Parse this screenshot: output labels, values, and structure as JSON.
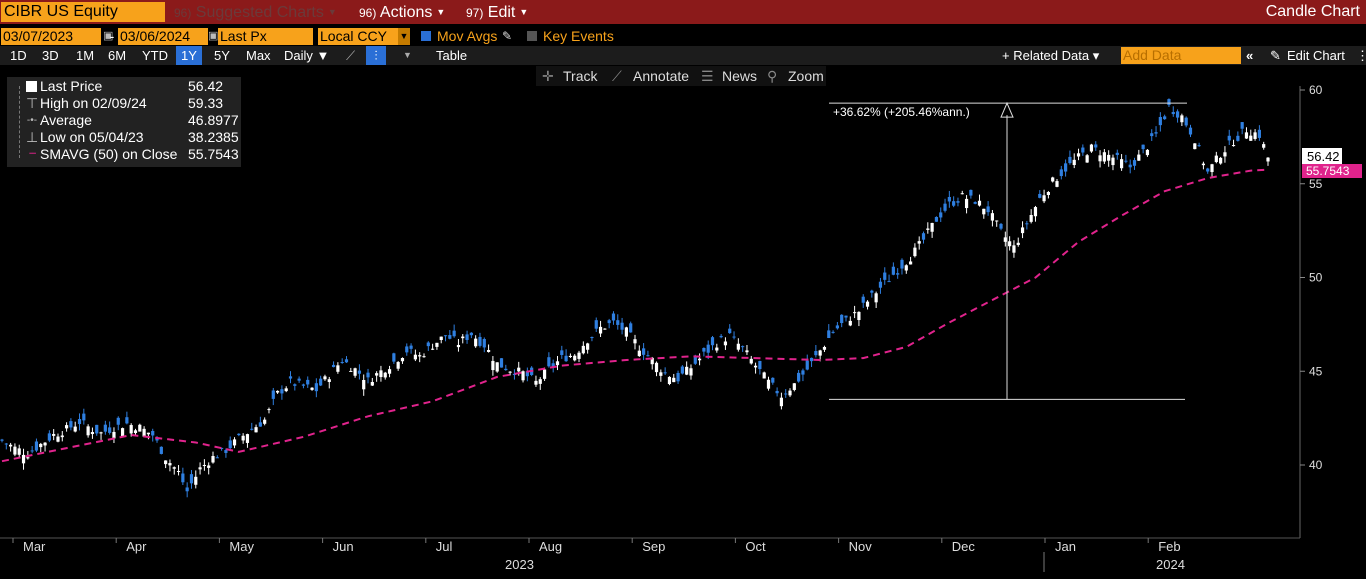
{
  "header": {
    "ticker": "CIBR US Equity",
    "menus": [
      {
        "num": "96)",
        "label": "Suggested Charts",
        "dim": true
      },
      {
        "num": "96)",
        "label": "Actions",
        "dim": false
      },
      {
        "num": "97)",
        "label": "Edit",
        "dim": false
      }
    ],
    "chart_type": "Candle Chart"
  },
  "controls": {
    "start_date": "03/07/2023",
    "end_date": "03/06/2024",
    "date_sep": "-",
    "price_field": "Last Px",
    "currency": "Local CCY",
    "mov_avgs_label": "Mov Avgs",
    "key_events_label": "Key Events",
    "ranges": [
      "1D",
      "3D",
      "1M",
      "6M",
      "YTD",
      "1Y",
      "5Y",
      "Max"
    ],
    "active_range": "1Y",
    "frequency": "Daily ▼",
    "table_label": "Table",
    "related_data": "+ Related Data ▾",
    "add_data_placeholder": "Add Data",
    "edit_chart": "Edit Chart"
  },
  "chart_toolbar": {
    "track": "Track",
    "annotate": "Annotate",
    "news": "News",
    "zoom": "Zoom"
  },
  "legend": [
    {
      "label": "Last Price",
      "value": "56.42"
    },
    {
      "label": "High on 02/09/24",
      "value": "59.33"
    },
    {
      "label": "Average",
      "value": "46.8977"
    },
    {
      "label": "Low on 05/04/23",
      "value": "38.2385"
    },
    {
      "label": "SMAVG (50)  on Close",
      "value": "55.7543"
    }
  ],
  "colors": {
    "up": "#ffffff",
    "down": "#2f7fe0",
    "sma": "#e0238c",
    "accent": "#f7a21b"
  },
  "chart_data": {
    "type": "candlestick",
    "x_months": [
      "Mar",
      "Apr",
      "May",
      "Jun",
      "Jul",
      "Aug",
      "Sep",
      "Oct",
      "Nov",
      "Dec",
      "Jan",
      "Feb"
    ],
    "x_years": [
      "2023",
      "2024"
    ],
    "y_ticks": [
      40,
      45,
      50,
      55,
      60
    ],
    "ylim": [
      36.5,
      60.5
    ],
    "last_price_label": "56.42",
    "sma_label": "55.7543",
    "annotation": "+36.62% (+205.46%ann.)",
    "measure_low": 43.5,
    "measure_high": 59.3,
    "close_path": [
      [
        0,
        41.3
      ],
      [
        3,
        40.9
      ],
      [
        6,
        40.6
      ],
      [
        9,
        41.1
      ],
      [
        12,
        41.6
      ],
      [
        15,
        41.9
      ],
      [
        18,
        42.3
      ],
      [
        21,
        41.9
      ],
      [
        23,
        41.7
      ],
      [
        26,
        42.0
      ],
      [
        29,
        42.2
      ],
      [
        32,
        42.0
      ],
      [
        35,
        41.6
      ],
      [
        38,
        40.4
      ],
      [
        41,
        39.6
      ],
      [
        43,
        38.6
      ],
      [
        46,
        39.8
      ],
      [
        49,
        40.4
      ],
      [
        52,
        40.8
      ],
      [
        55,
        41.4
      ],
      [
        58,
        41.9
      ],
      [
        61,
        42.4
      ],
      [
        64,
        43.8
      ],
      [
        67,
        44.4
      ],
      [
        70,
        44.2
      ],
      [
        73,
        44.0
      ],
      [
        76,
        44.8
      ],
      [
        79,
        45.6
      ],
      [
        82,
        45.1
      ],
      [
        85,
        44.5
      ],
      [
        88,
        45.0
      ],
      [
        91,
        45.5
      ],
      [
        94,
        46.1
      ],
      [
        97,
        45.8
      ],
      [
        100,
        46.4
      ],
      [
        103,
        46.9
      ],
      [
        106,
        46.5
      ],
      [
        109,
        47.0
      ],
      [
        112,
        46.4
      ],
      [
        115,
        45.4
      ],
      [
        118,
        45.1
      ],
      [
        121,
        44.9
      ],
      [
        124,
        44.4
      ],
      [
        127,
        45.1
      ],
      [
        130,
        45.7
      ],
      [
        133,
        45.9
      ],
      [
        136,
        46.7
      ],
      [
        139,
        47.3
      ],
      [
        142,
        47.6
      ],
      [
        145,
        47.1
      ],
      [
        148,
        46.3
      ],
      [
        151,
        45.6
      ],
      [
        154,
        44.9
      ],
      [
        157,
        44.6
      ],
      [
        160,
        45.2
      ],
      [
        163,
        45.9
      ],
      [
        166,
        46.5
      ],
      [
        169,
        46.9
      ],
      [
        172,
        46.2
      ],
      [
        175,
        45.3
      ],
      [
        178,
        44.4
      ],
      [
        181,
        43.7
      ],
      [
        184,
        44.3
      ],
      [
        187,
        45.1
      ],
      [
        190,
        46.1
      ],
      [
        193,
        47.1
      ],
      [
        196,
        47.7
      ],
      [
        199,
        48.2
      ],
      [
        202,
        49.0
      ],
      [
        205,
        49.7
      ],
      [
        208,
        50.4
      ],
      [
        211,
        51.1
      ],
      [
        214,
        52.0
      ],
      [
        217,
        53.1
      ],
      [
        220,
        53.9
      ],
      [
        223,
        54.3
      ],
      [
        226,
        54.1
      ],
      [
        229,
        53.6
      ],
      [
        232,
        52.4
      ],
      [
        235,
        51.6
      ],
      [
        238,
        52.9
      ],
      [
        241,
        54.2
      ],
      [
        244,
        55.1
      ],
      [
        247,
        55.8
      ],
      [
        250,
        56.4
      ],
      [
        253,
        56.9
      ],
      [
        256,
        56.6
      ],
      [
        259,
        56.3
      ],
      [
        262,
        55.9
      ],
      [
        265,
        56.7
      ],
      [
        268,
        57.6
      ],
      [
        271,
        59.1
      ],
      [
        274,
        58.6
      ],
      [
        277,
        57.4
      ],
      [
        280,
        55.6
      ],
      [
        283,
        56.6
      ],
      [
        286,
        57.3
      ],
      [
        289,
        57.9
      ],
      [
        292,
        57.6
      ],
      [
        294,
        56.4
      ]
    ],
    "sma_path": [
      [
        0,
        40.2
      ],
      [
        15,
        40.9
      ],
      [
        30,
        41.6
      ],
      [
        45,
        41.2
      ],
      [
        55,
        40.7
      ],
      [
        70,
        41.5
      ],
      [
        85,
        42.6
      ],
      [
        100,
        43.4
      ],
      [
        115,
        44.7
      ],
      [
        130,
        45.3
      ],
      [
        145,
        45.6
      ],
      [
        160,
        45.8
      ],
      [
        175,
        45.7
      ],
      [
        190,
        45.6
      ],
      [
        200,
        45.7
      ],
      [
        210,
        46.3
      ],
      [
        220,
        47.6
      ],
      [
        230,
        48.8
      ],
      [
        240,
        50.0
      ],
      [
        250,
        51.9
      ],
      [
        260,
        53.3
      ],
      [
        270,
        54.6
      ],
      [
        280,
        55.3
      ],
      [
        290,
        55.7
      ],
      [
        294,
        55.75
      ]
    ]
  }
}
